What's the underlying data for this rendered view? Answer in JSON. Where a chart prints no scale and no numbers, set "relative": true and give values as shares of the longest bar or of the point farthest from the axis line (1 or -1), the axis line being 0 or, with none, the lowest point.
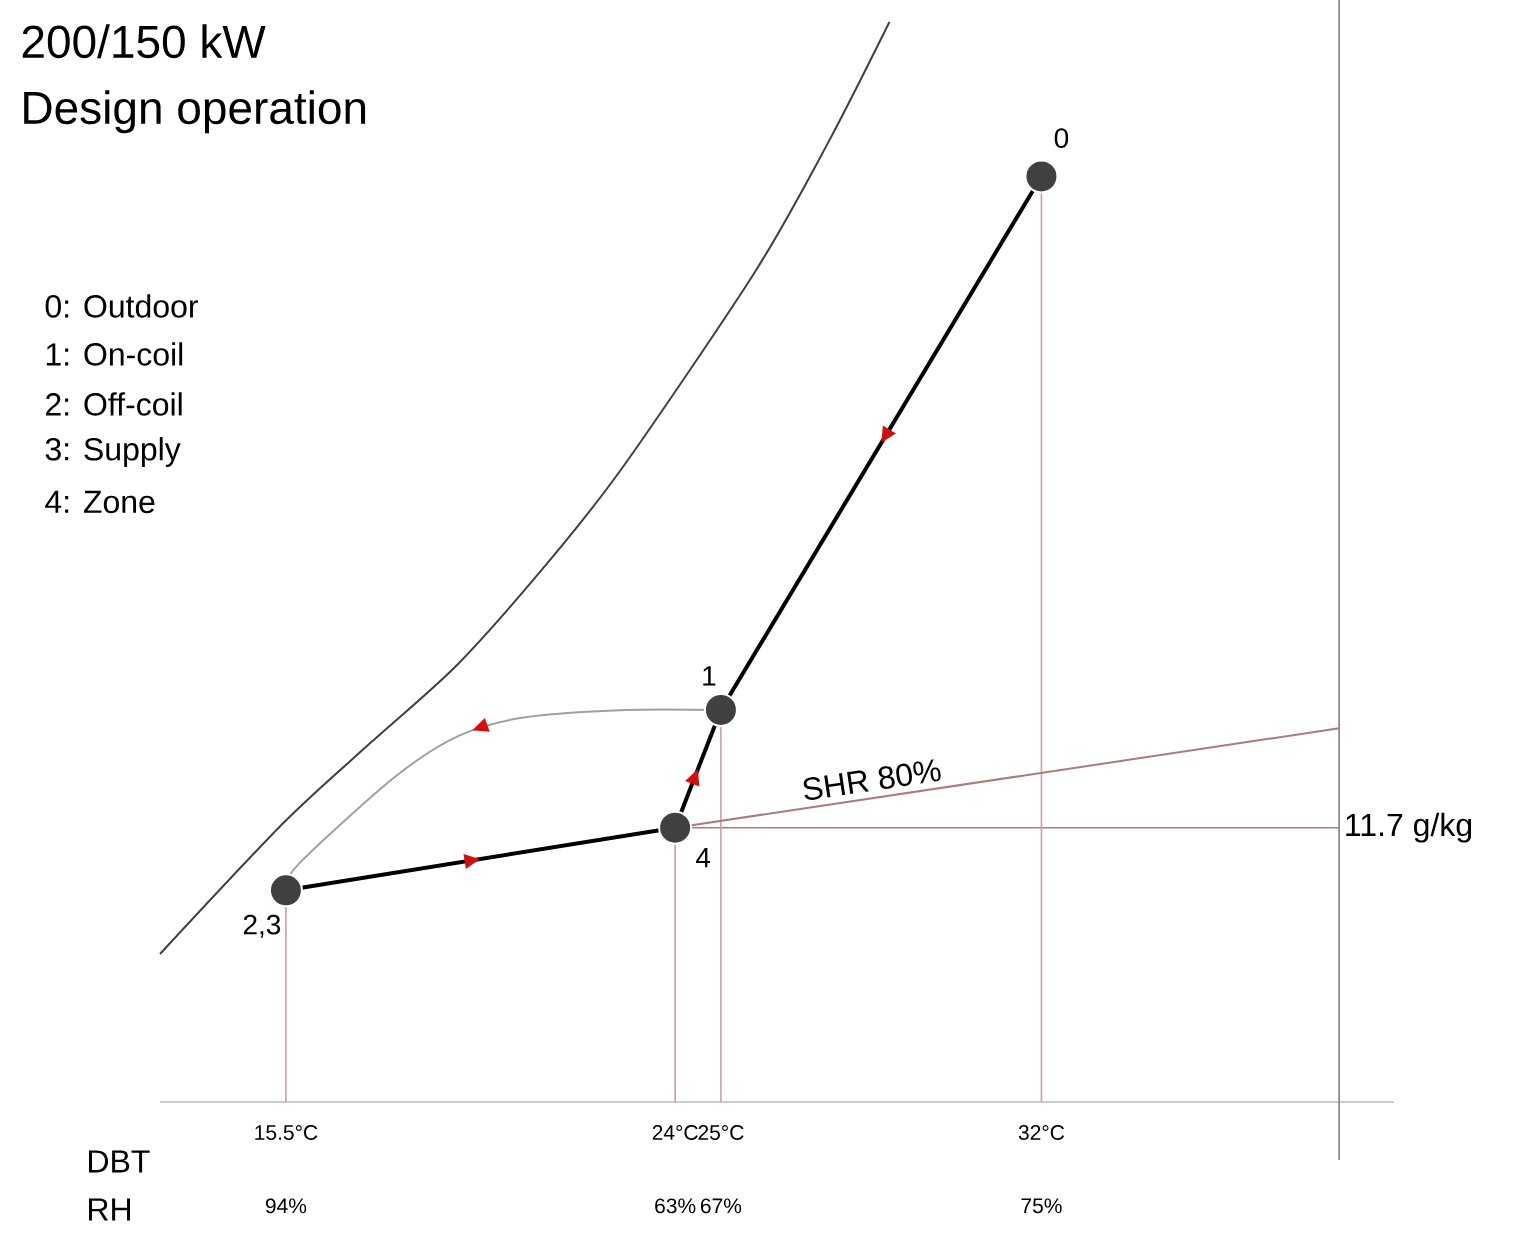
{
  "chart_data": {
    "type": "line",
    "title": "200/150 kW",
    "subtitle": "Design operation",
    "xlabel": "DBT",
    "relative": true,
    "xlim": [
      12.75,
      39.7
    ],
    "xticks": [
      {
        "value": 15.5,
        "label": "15.5°C"
      },
      {
        "value": 24,
        "label": "24°C"
      },
      {
        "value": 25,
        "label": "25°C"
      },
      {
        "value": 32,
        "label": "32°C"
      }
    ],
    "series": [
      {
        "color": "#404040",
        "x": [
          12.75,
          15.46,
          17.36,
          19.27,
          21.31,
          22.91,
          25.75,
          27.35,
          28.68
        ],
        "values": [
          0.137,
          0.259,
          0.333,
          0.406,
          0.504,
          0.591,
          0.769,
          0.889,
          1.0
        ]
      },
      {
        "color": "#000000",
        "x": [
          32,
          25
        ],
        "values": [
          0.857,
          0.363
        ]
      },
      {
        "color": "#000000",
        "x": [
          24,
          25
        ],
        "values": [
          0.254,
          0.363
        ]
      },
      {
        "color": "#000000",
        "x": [
          15.5,
          24
        ],
        "values": [
          0.196,
          0.254
        ]
      },
      {
        "color": "#a0a0a0",
        "x": [
          25,
          22.91,
          20.69,
          19.27,
          17.85,
          15.77,
          15.5
        ],
        "values": [
          0.363,
          0.363,
          0.356,
          0.339,
          0.3,
          0.22,
          0.196
        ]
      },
      {
        "name": "SHR 80%",
        "color": "#b07a7a",
        "x": [
          24,
          38.5
        ],
        "values": [
          0.254,
          0.346
        ]
      },
      {
        "type": "scatter",
        "color": "#404040",
        "marker": "circle",
        "x": [
          32,
          25,
          24,
          15.5
        ],
        "values": [
          0.857,
          0.363,
          0.254,
          0.196
        ]
      }
    ],
    "ref_lines": [
      {
        "axis": "y",
        "value": 0.254,
        "label": "11.7 g/kg",
        "color": "#b07a7a"
      },
      {
        "axis": "x",
        "value": 38.5,
        "color": "#808080"
      }
    ],
    "annotations": [
      "0: Outdoor",
      "1: On-coil",
      "2: Off-coil",
      "3: Supply",
      "4: Zone",
      "RH",
      {
        "text": "0",
        "x": 32,
        "y": 0.857
      },
      {
        "text": "1",
        "x": 25,
        "y": 0.363
      },
      {
        "text": "4",
        "x": 24,
        "y": 0.254
      },
      {
        "text": "2,3",
        "x": 15.5,
        "y": 0.196
      },
      "94%",
      "63%",
      "67%",
      "75%"
    ]
  }
}
